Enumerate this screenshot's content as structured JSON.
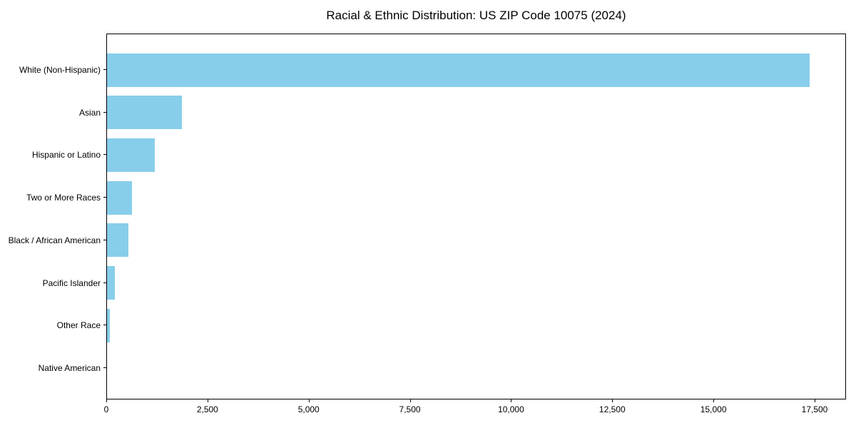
{
  "title": "Racial & Ethnic Distribution: US ZIP Code 10075 (2024)",
  "chart_data": {
    "type": "bar",
    "orientation": "horizontal",
    "title": "Racial & Ethnic Distribution: US ZIP Code 10075 (2024)",
    "xlabel": "",
    "ylabel": "",
    "categories": [
      "White (Non-Hispanic)",
      "Asian",
      "Hispanic or Latino",
      "Two or More Races",
      "Black / African American",
      "Pacific Islander",
      "Other Race",
      "Native American"
    ],
    "values": [
      17360,
      1850,
      1180,
      620,
      530,
      190,
      65,
      0
    ],
    "xlim": [
      0,
      18240
    ],
    "x_ticks": [
      0,
      2500,
      5000,
      7500,
      10000,
      12500,
      15000,
      17500
    ],
    "x_tick_labels": [
      "0",
      "2,500",
      "5,000",
      "7,500",
      "10,000",
      "12,500",
      "15,000",
      "17,500"
    ],
    "bar_color": "#87CEEB",
    "text_color": "#000000",
    "spine_color": "#000000",
    "grid": false,
    "legend": null
  }
}
